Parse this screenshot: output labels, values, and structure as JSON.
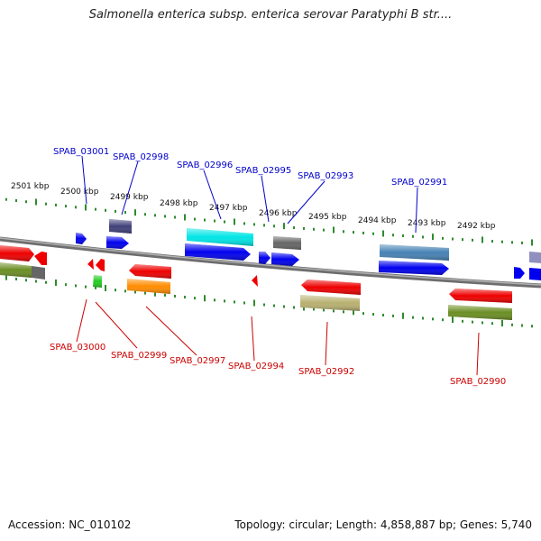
{
  "title": "Salmonella enterica subsp. enterica serovar Paratyphi B str....",
  "accession": "Accession: NC_010102",
  "summary": "Topology: circular; Length: 4,858,887 bp; Genes: 5,740",
  "scale_labels": [
    "2501 kbp",
    "2500 kbp",
    "2499 kbp",
    "2498 kbp",
    "2497 kbp",
    "2496 kbp",
    "2495 kbp",
    "2494 kbp",
    "2493 kbp",
    "2492 kbp"
  ],
  "forward_gene_labels": [
    "SPAB_03001",
    "SPAB_02998",
    "SPAB_02996",
    "SPAB_02995",
    "SPAB_02993",
    "SPAB_02991"
  ],
  "reverse_gene_labels": [
    "SPAB_03000",
    "SPAB_02999",
    "SPAB_02997",
    "SPAB_02994",
    "SPAB_02992",
    "SPAB_02990"
  ],
  "colors": {
    "forward_label": "#0000cc",
    "reverse_label": "#cc0000",
    "tick": "#2e8b2e",
    "backbone": "#808080",
    "blue": "#0000ee",
    "red": "#ee0000",
    "cyan": "#00e5e5",
    "navy": "#40407a",
    "gray": "#666666",
    "steelblue": "#4682b4",
    "olive": "#6b8e23",
    "orange": "#ff8c00",
    "green": "#22cc22",
    "khaki": "#b8b070",
    "lavender": "#9090c0"
  }
}
